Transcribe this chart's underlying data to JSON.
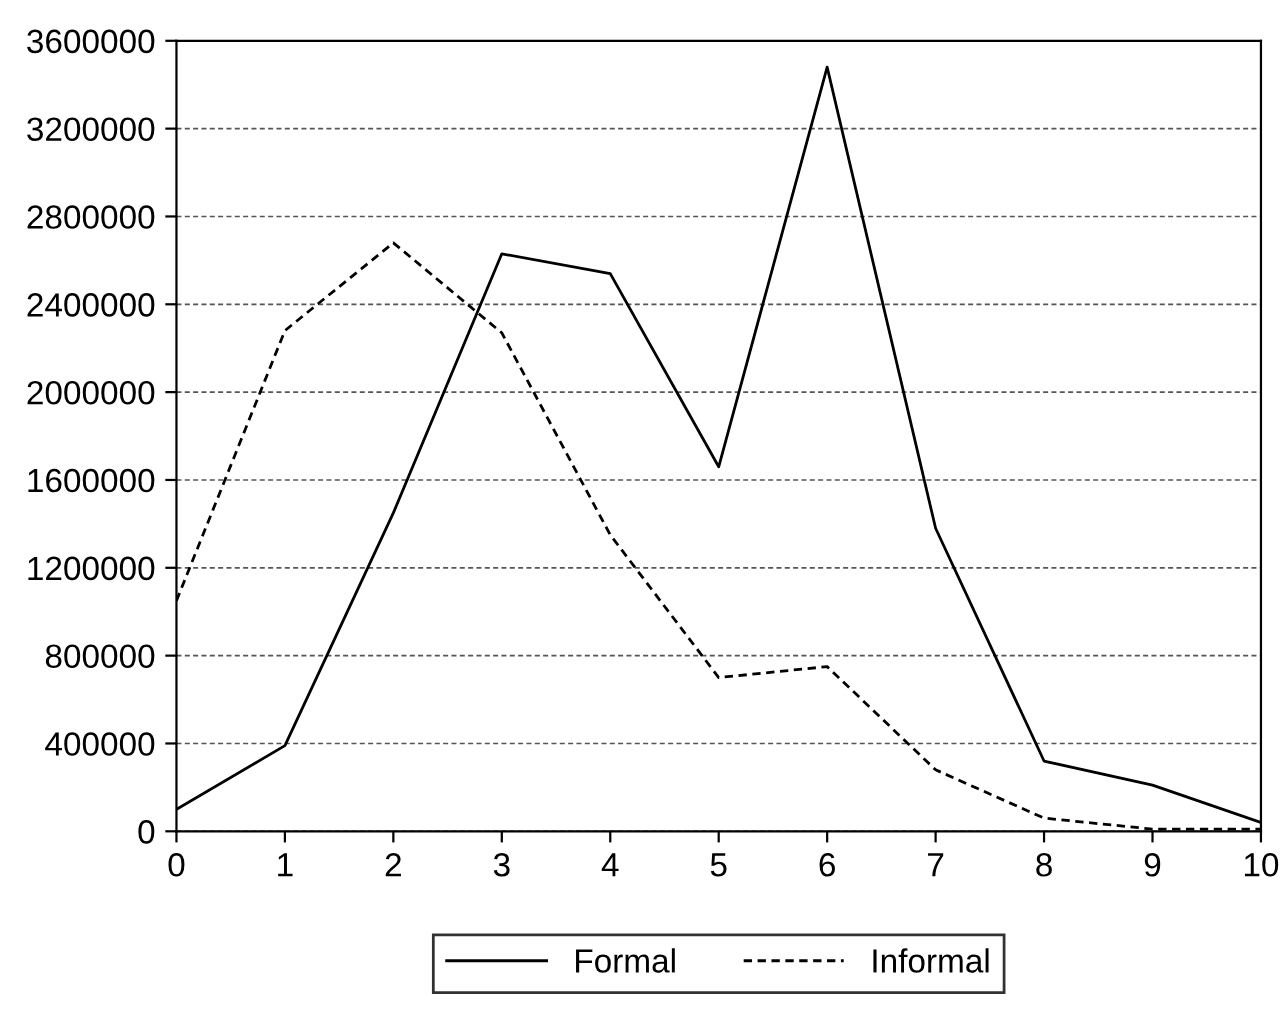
{
  "chart_data": {
    "type": "line",
    "x": [
      0,
      1,
      2,
      3,
      4,
      5,
      6,
      7,
      8,
      9,
      10
    ],
    "series": [
      {
        "name": "Formal",
        "color": "#000000",
        "line_style": "solid",
        "values": [
          100000,
          390000,
          1450000,
          2630000,
          2540000,
          1660000,
          3480000,
          1380000,
          320000,
          210000,
          40000
        ]
      },
      {
        "name": "Informal",
        "color": "#000000",
        "line_style": "dashed",
        "values": [
          1050000,
          2280000,
          2680000,
          2270000,
          1350000,
          700000,
          750000,
          280000,
          60000,
          10000,
          10000
        ]
      }
    ],
    "xlim": [
      0,
      10
    ],
    "xticks": [
      0,
      1,
      2,
      3,
      4,
      5,
      6,
      7,
      8,
      9,
      10
    ],
    "ylim": [
      0,
      3600000
    ],
    "yticks": [
      0,
      400000,
      800000,
      1200000,
      1600000,
      2000000,
      2400000,
      2800000,
      3200000,
      3600000
    ],
    "grid": "y",
    "legend": "bottom",
    "marker": "none"
  }
}
